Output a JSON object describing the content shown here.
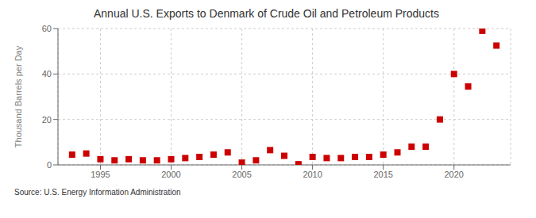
{
  "chart_data": {
    "type": "scatter",
    "title": "Annual U.S. Exports to Denmark of Crude Oil and Petroleum Products",
    "ylabel": "Thousand Barrels per Day",
    "annotations": [
      "Source: U.S. Energy Information Administration"
    ],
    "x": [
      1993,
      1994,
      1995,
      1996,
      1997,
      1998,
      1999,
      2000,
      2001,
      2002,
      2003,
      2004,
      2005,
      2006,
      2007,
      2008,
      2009,
      2010,
      2011,
      2012,
      2013,
      2014,
      2015,
      2016,
      2017,
      2018,
      2019,
      2020,
      2021,
      2022,
      2023
    ],
    "values": [
      4.5,
      5.0,
      2.5,
      2.0,
      2.5,
      2.0,
      2.0,
      2.5,
      3.0,
      3.5,
      4.5,
      5.5,
      1.0,
      2.0,
      6.5,
      4.0,
      0.3,
      3.5,
      3.0,
      3.0,
      3.5,
      3.5,
      4.5,
      5.5,
      8.0,
      8.0,
      20.0,
      40.0,
      34.5,
      59.0,
      52.5
    ],
    "xlim": [
      1992.0,
      2024.0
    ],
    "ylim": [
      0,
      60
    ],
    "xticks": [
      1995,
      2000,
      2005,
      2010,
      2015,
      2020
    ],
    "yticks": [
      0,
      20,
      40,
      60
    ],
    "color": "#cc0000",
    "marker": "square",
    "grid": true
  }
}
